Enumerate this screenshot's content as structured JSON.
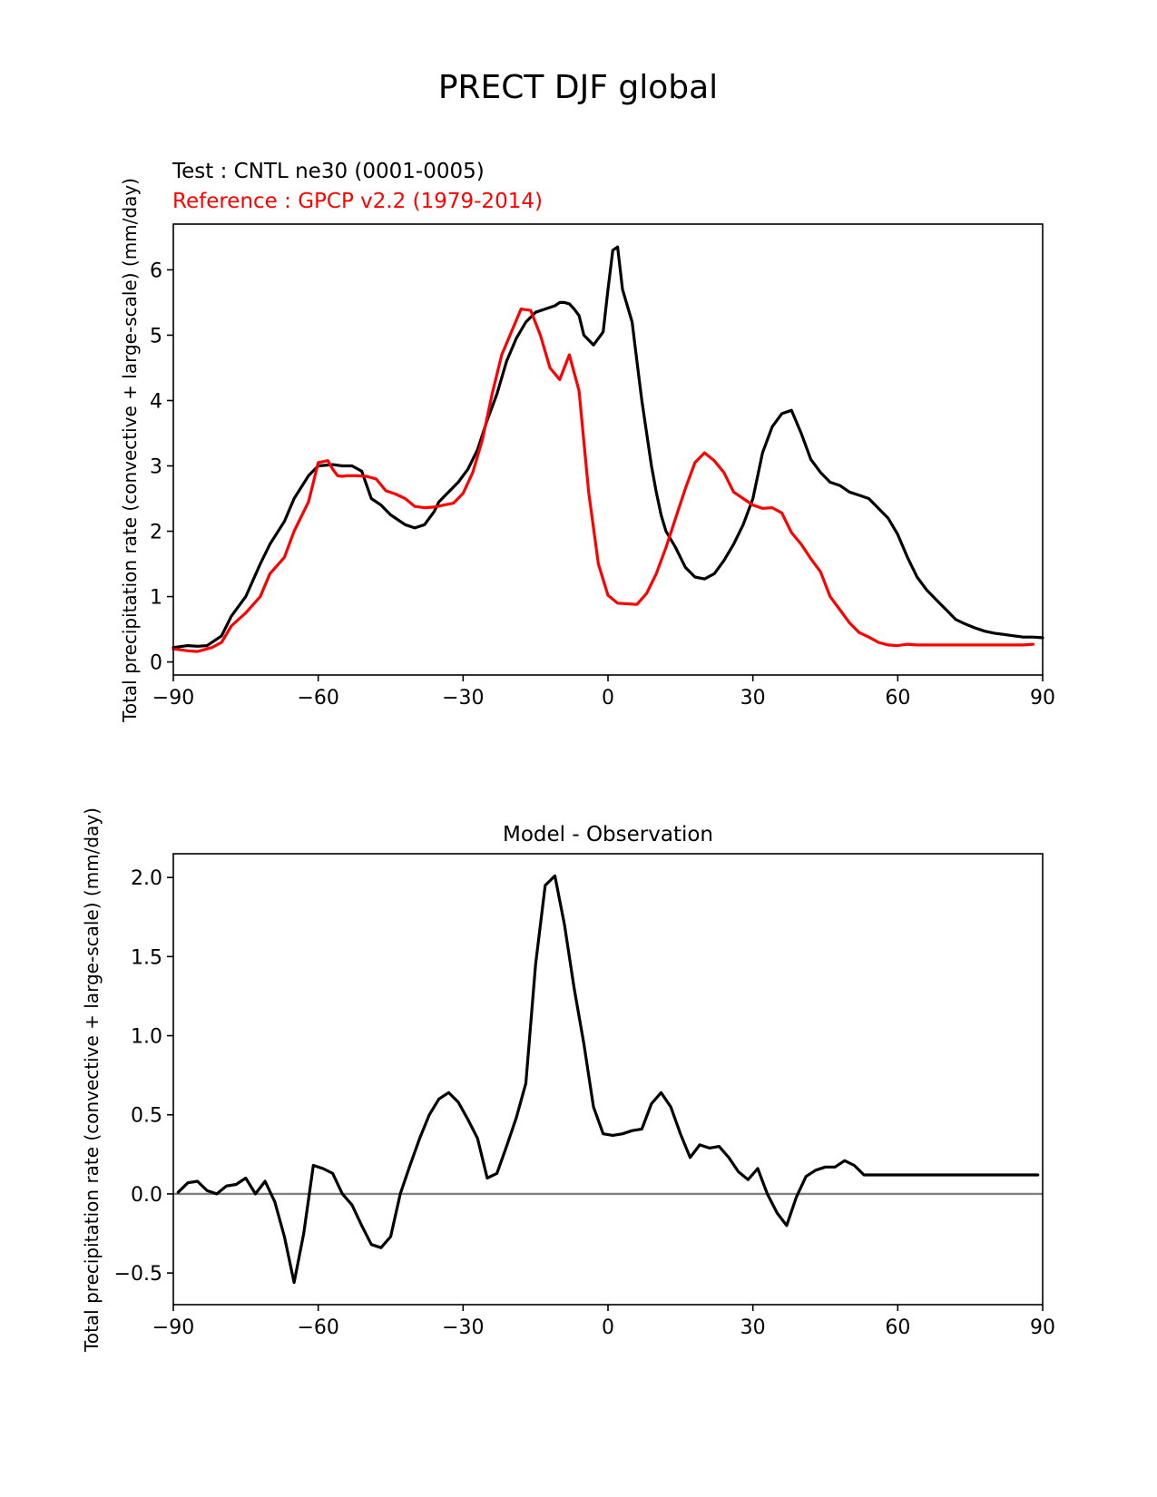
{
  "figure": {
    "title": "PRECT DJF global"
  },
  "chart_data": [
    {
      "type": "line",
      "test_label": "Test : CNTL ne30 (0001-0005)",
      "reference_label": "Reference : GPCP v2.2 (1979-2014)",
      "xlabel": "",
      "ylabel": "Total precipitation rate (convective + large-scale) (mm/day)",
      "xlim": [
        -90,
        90
      ],
      "ylim": [
        -0.2,
        6.7
      ],
      "xticks": [
        -90,
        -60,
        -30,
        0,
        30,
        60,
        90
      ],
      "xtick_labels": [
        "−90",
        "−60",
        "−30",
        "0",
        "30",
        "60",
        "90"
      ],
      "yticks": [
        0,
        1,
        2,
        3,
        4,
        5,
        6
      ],
      "ytick_labels": [
        "0",
        "1",
        "2",
        "3",
        "4",
        "5",
        "6"
      ],
      "series": [
        {
          "name": "Test : CNTL ne30 (0001-0005)",
          "color": "#000000",
          "x": [
            -90,
            -87,
            -85,
            -83,
            -80,
            -78,
            -75,
            -72,
            -70,
            -67,
            -65,
            -62,
            -60,
            -57,
            -55,
            -53,
            -51,
            -49,
            -47,
            -45,
            -42,
            -40,
            -38,
            -36,
            -35,
            -33,
            -31,
            -29,
            -27,
            -25,
            -23,
            -21,
            -19,
            -17,
            -15,
            -13,
            -11,
            -10,
            -9,
            -8,
            -7,
            -6,
            -5,
            -3,
            -2,
            -1,
            0,
            1,
            2,
            3,
            5,
            6,
            7,
            8,
            9,
            10,
            11,
            12,
            14,
            16,
            18,
            20,
            22,
            24,
            26,
            28,
            30,
            32,
            34,
            36,
            38,
            40,
            42,
            44,
            46,
            48,
            50,
            52,
            54,
            56,
            58,
            60,
            62,
            64,
            66,
            68,
            70,
            72,
            74,
            76,
            78,
            80,
            82,
            84,
            86,
            88,
            90
          ],
          "values": [
            0.22,
            0.25,
            0.24,
            0.25,
            0.4,
            0.7,
            1.0,
            1.5,
            1.8,
            2.15,
            2.5,
            2.85,
            3.0,
            3.02,
            3.0,
            3.0,
            2.92,
            2.5,
            2.4,
            2.25,
            2.1,
            2.05,
            2.1,
            2.3,
            2.45,
            2.6,
            2.75,
            2.95,
            3.25,
            3.7,
            4.1,
            4.6,
            4.95,
            5.2,
            5.35,
            5.4,
            5.45,
            5.5,
            5.5,
            5.48,
            5.4,
            5.3,
            5.0,
            4.85,
            4.95,
            5.05,
            5.7,
            6.3,
            6.35,
            5.7,
            5.2,
            4.6,
            4.0,
            3.5,
            3.0,
            2.6,
            2.25,
            2.0,
            1.75,
            1.45,
            1.3,
            1.27,
            1.35,
            1.55,
            1.8,
            2.1,
            2.5,
            3.2,
            3.6,
            3.8,
            3.85,
            3.5,
            3.1,
            2.9,
            2.75,
            2.7,
            2.6,
            2.55,
            2.5,
            2.35,
            2.2,
            1.95,
            1.6,
            1.3,
            1.1,
            0.95,
            0.8,
            0.65,
            0.58,
            0.52,
            0.47,
            0.44,
            0.42,
            0.4,
            0.38,
            0.38,
            0.37
          ]
        },
        {
          "name": "Reference : GPCP v2.2 (1979-2014)",
          "color": "#ff0000",
          "x": [
            -90,
            -87,
            -85,
            -82,
            -80,
            -78,
            -75,
            -72,
            -70,
            -67,
            -65,
            -62,
            -60,
            -58,
            -57,
            -56,
            -55,
            -54,
            -52,
            -50,
            -48,
            -46,
            -44,
            -42,
            -40,
            -38,
            -36,
            -34,
            -32,
            -30,
            -28,
            -26,
            -24,
            -22,
            -20,
            -18,
            -16,
            -14,
            -12,
            -10,
            -8,
            -6,
            -4,
            -2,
            0,
            2,
            4,
            6,
            8,
            10,
            12,
            14,
            16,
            18,
            20,
            22,
            24,
            26,
            28,
            30,
            32,
            34,
            36,
            38,
            40,
            42,
            44,
            46,
            48,
            50,
            52,
            54,
            56,
            58,
            60,
            62,
            64,
            66,
            68,
            70,
            72,
            74,
            76,
            78,
            80,
            82,
            84,
            86,
            88
          ],
          "values": [
            0.2,
            0.17,
            0.16,
            0.22,
            0.3,
            0.55,
            0.75,
            1.0,
            1.35,
            1.6,
            2.0,
            2.45,
            3.05,
            3.08,
            2.95,
            2.85,
            2.84,
            2.85,
            2.85,
            2.84,
            2.8,
            2.62,
            2.57,
            2.5,
            2.38,
            2.36,
            2.37,
            2.4,
            2.43,
            2.58,
            2.9,
            3.4,
            4.1,
            4.7,
            5.05,
            5.4,
            5.38,
            5.0,
            4.5,
            4.32,
            4.7,
            4.15,
            2.6,
            1.5,
            1.02,
            0.9,
            0.89,
            0.88,
            1.05,
            1.35,
            1.75,
            2.2,
            2.65,
            3.05,
            3.2,
            3.08,
            2.9,
            2.6,
            2.5,
            2.4,
            2.35,
            2.36,
            2.28,
            1.98,
            1.8,
            1.58,
            1.38,
            1.0,
            0.8,
            0.6,
            0.45,
            0.38,
            0.3,
            0.26,
            0.25,
            0.27,
            0.26,
            0.26,
            0.26,
            0.26,
            0.26,
            0.26,
            0.26,
            0.26,
            0.26,
            0.26,
            0.26,
            0.26,
            0.27
          ]
        }
      ]
    },
    {
      "type": "line",
      "title": "Model - Observation",
      "xlabel": "",
      "ylabel": "Total precipitation rate (convective + large-scale) (mm/day)",
      "xlim": [
        -90,
        90
      ],
      "ylim": [
        -0.7,
        2.15
      ],
      "xticks": [
        -90,
        -60,
        -30,
        0,
        30,
        60,
        90
      ],
      "xtick_labels": [
        "−90",
        "−60",
        "−30",
        "0",
        "30",
        "60",
        "90"
      ],
      "yticks": [
        -0.5,
        0.0,
        0.5,
        1.0,
        1.5,
        2.0
      ],
      "ytick_labels": [
        "−0.5",
        "0.0",
        "0.5",
        "1.0",
        "1.5",
        "2.0"
      ],
      "zero_line_color": "#808080",
      "series": [
        {
          "name": "Model - Observation",
          "color": "#000000",
          "x": [
            -89,
            -87,
            -85,
            -83,
            -81,
            -79,
            -77,
            -75,
            -73,
            -71,
            -69,
            -67,
            -65,
            -63,
            -61,
            -59,
            -57,
            -55,
            -53,
            -51,
            -49,
            -47,
            -45,
            -43,
            -41,
            -39,
            -37,
            -35,
            -33,
            -31,
            -29,
            -27,
            -25,
            -23,
            -21,
            -19,
            -17,
            -15,
            -13,
            -11,
            -9,
            -7,
            -5,
            -3,
            -1,
            1,
            3,
            5,
            7,
            9,
            11,
            13,
            15,
            17,
            19,
            21,
            23,
            25,
            27,
            29,
            31,
            33,
            35,
            37,
            39,
            41,
            43,
            45,
            47,
            49,
            51,
            53,
            55,
            57,
            59,
            61,
            63,
            65,
            67,
            69,
            71,
            73,
            75,
            77,
            79,
            81,
            83,
            85,
            87,
            89
          ],
          "values": [
            0.01,
            0.07,
            0.08,
            0.02,
            0.0,
            0.05,
            0.06,
            0.1,
            0.0,
            0.08,
            -0.05,
            -0.27,
            -0.56,
            -0.25,
            0.18,
            0.16,
            0.13,
            0.0,
            -0.07,
            -0.2,
            -0.32,
            -0.34,
            -0.27,
            0.0,
            0.18,
            0.35,
            0.5,
            0.6,
            0.64,
            0.58,
            0.47,
            0.35,
            0.1,
            0.13,
            0.3,
            0.48,
            0.7,
            1.45,
            1.95,
            2.01,
            1.7,
            1.3,
            0.95,
            0.55,
            0.38,
            0.37,
            0.38,
            0.4,
            0.41,
            0.57,
            0.64,
            0.55,
            0.38,
            0.23,
            0.31,
            0.29,
            0.3,
            0.23,
            0.14,
            0.09,
            0.16,
            0.0,
            -0.12,
            -0.2,
            -0.02,
            0.11,
            0.15,
            0.17,
            0.17,
            0.21,
            0.18,
            0.12,
            0.12,
            0.12,
            0.12,
            0.12,
            0.12,
            0.12,
            0.12,
            0.12,
            0.12,
            0.12,
            0.12,
            0.12,
            0.12,
            0.12,
            0.12,
            0.12,
            0.12,
            0.12
          ]
        }
      ]
    }
  ]
}
